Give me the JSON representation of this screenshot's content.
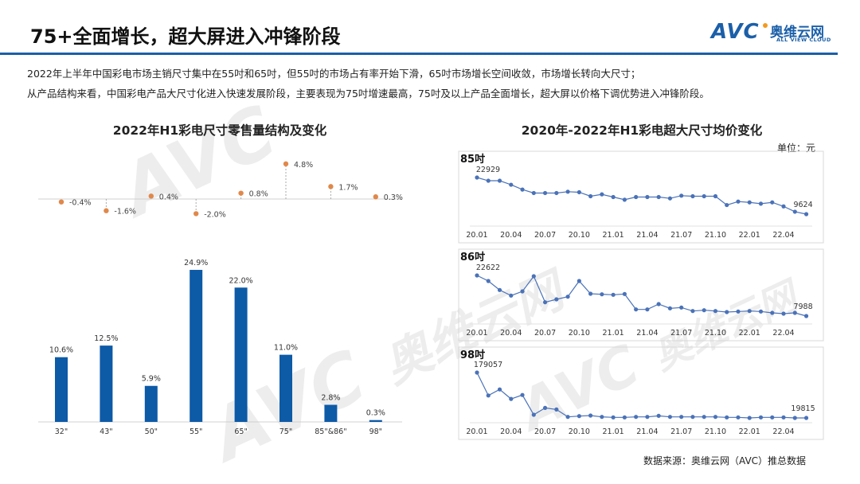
{
  "header": {
    "title": "75+全面增长，超大屏进入冲锋阶段",
    "logo": {
      "mark": "AVC",
      "cn": "奥维云网",
      "en": "ALL VIEW CLOUD"
    },
    "accent_color": "#1b5fa8"
  },
  "summary": [
    "2022年上半年中国彩电市场主销尺寸集中在55吋和65吋，但55吋的市场占有率开始下滑，65吋市场增长空间收敛，市场增长转向大尺寸；",
    "从产品结构来看，中国彩电产品大尺寸化进入快速发展阶段，主要表现为75吋增速最高，75吋及以上产品全面增长，超大屏以价格下调优势进入冲锋阶段。"
  ],
  "left_title": "2022年H1彩电尺寸零售量结构及变化",
  "right_title": "2020年-2022年H1彩电超大尺寸均价变化",
  "unit_label": "单位：元",
  "source": "数据来源：奥维云网（AVC）推总数据",
  "watermark": {
    "mark": "AVC",
    "cn": "奥维云网",
    "en": "ALL VIEW CLOUD"
  },
  "chart_data": [
    {
      "type": "scatter",
      "categories": [
        "32\"",
        "43\"",
        "50\"",
        "55\"",
        "65\"",
        "75\"",
        "85\"&86\"",
        "98\""
      ],
      "values": [
        -0.4,
        -1.6,
        0.4,
        -2.0,
        0.8,
        4.8,
        1.7,
        0.3
      ],
      "labels": [
        "-0.4%",
        "-1.6%",
        "0.4%",
        "-2.0%",
        "0.8%",
        "4.8%",
        "1.7%",
        "0.3%"
      ],
      "color": "#e0884a"
    },
    {
      "type": "bar",
      "categories": [
        "32\"",
        "43\"",
        "50\"",
        "55\"",
        "65\"",
        "75\"",
        "85\"&86\"",
        "98\""
      ],
      "values": [
        10.6,
        12.5,
        5.9,
        24.9,
        22.0,
        11.0,
        2.8,
        0.3
      ],
      "labels": [
        "10.6%",
        "12.5%",
        "5.9%",
        "24.9%",
        "22.0%",
        "11.0%",
        "2.8%",
        "0.3%"
      ],
      "color": "#0d5aa7"
    },
    {
      "type": "line",
      "panels": [
        {
          "title": "85吋",
          "first_label": "22929",
          "last_label": "9624",
          "values": [
            22929,
            21764,
            21764,
            20307,
            18559,
            17297,
            17297,
            17297,
            17783,
            17588,
            16132,
            16812,
            15841,
            14870,
            15841,
            15841,
            15841,
            15355,
            16326,
            16132,
            16132,
            16132,
            12928,
            14191,
            13899,
            13413,
            13899,
            12442,
            10500,
            9624
          ]
        },
        {
          "title": "86吋",
          "first_label": "22622",
          "last_label": "7988",
          "values": [
            22622,
            20613,
            17361,
            15353,
            16883,
            22335,
            12961,
            14014,
            14970,
            20613,
            16022,
            15831,
            15640,
            15927,
            10380,
            10380,
            12293,
            10762,
            11049,
            9806,
            10093,
            9806,
            9423,
            9614,
            9806,
            9614,
            9136,
            8849,
            9136,
            7988
          ]
        },
        {
          "title": "98吋",
          "first_label": "179057",
          "last_label": "19815",
          "values": [
            179057,
            98512,
            119806,
            86477,
            100364,
            30929,
            55000,
            49444,
            23521,
            26299,
            28150,
            23521,
            21670,
            21670,
            23521,
            23521,
            27224,
            23521,
            23521,
            23521,
            23521,
            23521,
            21670,
            21670,
            19815,
            21670,
            21670,
            21670,
            19815,
            19815
          ]
        }
      ],
      "x_tick_labels": [
        "20.01",
        "20.04",
        "20.07",
        "20.10",
        "21.01",
        "21.04",
        "21.07",
        "21.10",
        "22.01",
        "22.04"
      ],
      "color": "#4a72b8"
    }
  ]
}
